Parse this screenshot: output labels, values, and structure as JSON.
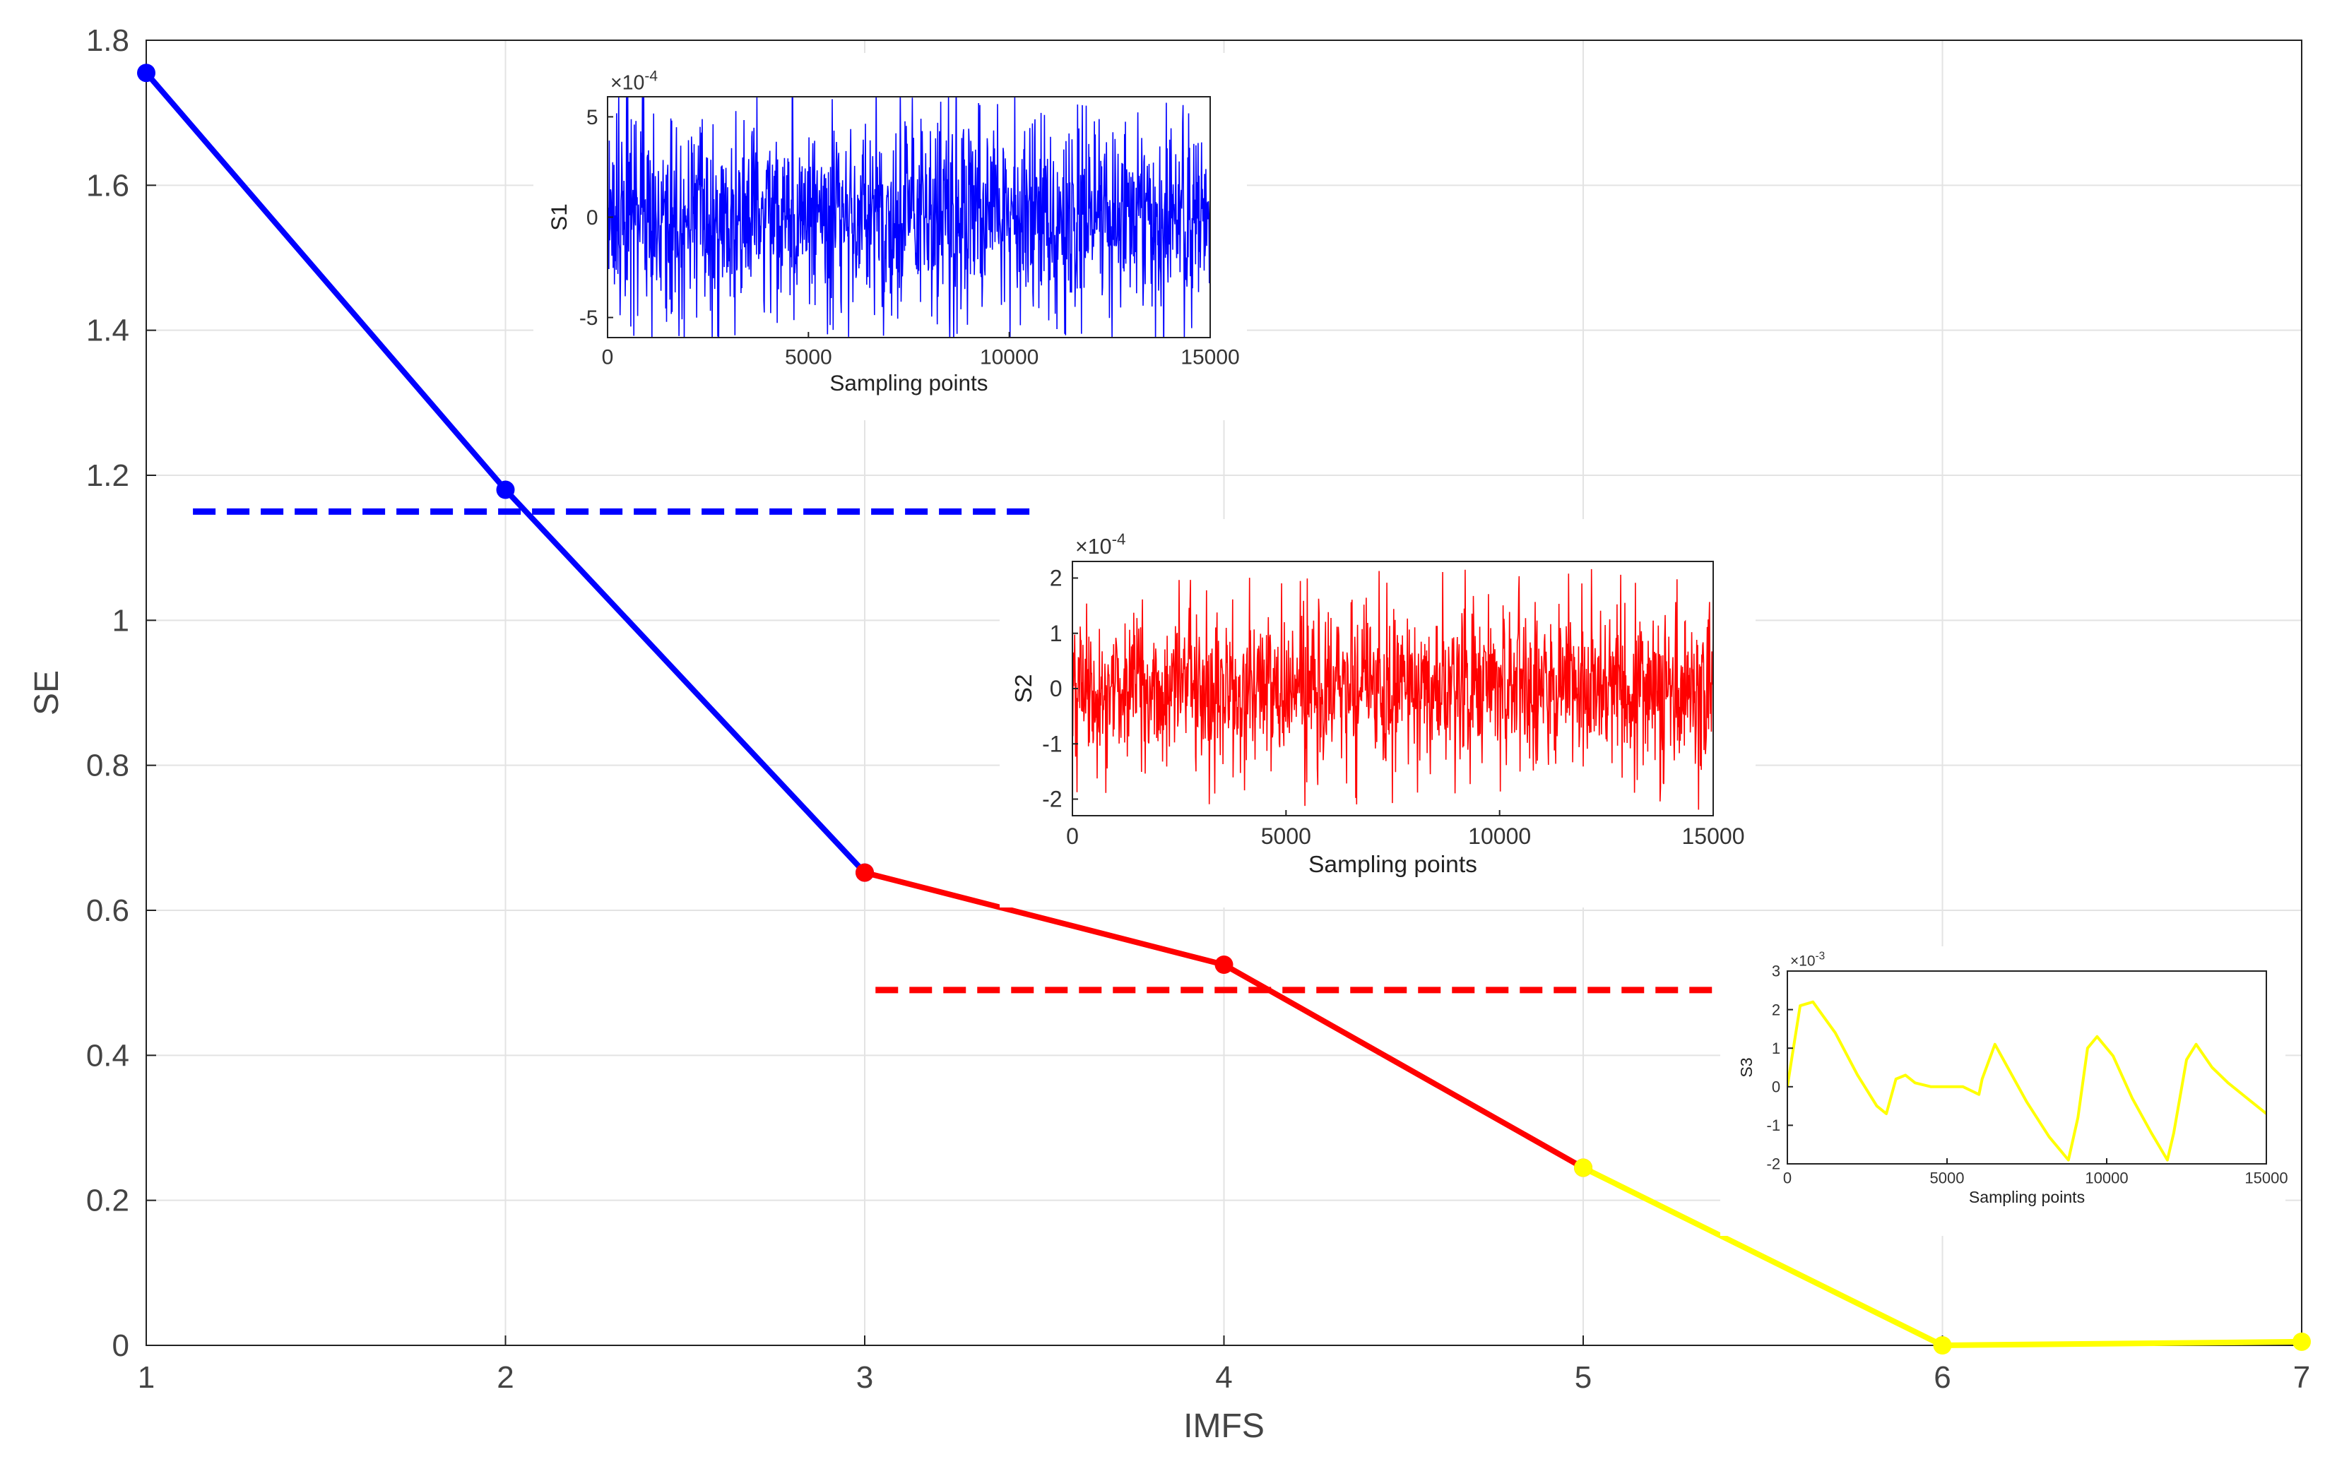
{
  "chart_data": [
    {
      "type": "line",
      "xlabel": "IMFS",
      "ylabel": "SE",
      "xlim": [
        1,
        7
      ],
      "ylim": [
        0,
        1.8
      ],
      "xticks": [
        1,
        2,
        3,
        4,
        5,
        6,
        7
      ],
      "yticks": [
        0,
        0.2,
        0.4,
        0.6,
        0.8,
        1,
        1.2,
        1.4,
        1.6,
        1.8
      ],
      "ytick_labels": [
        "0",
        "0.2",
        "0.4",
        "0.6",
        "0.8",
        "1",
        "1.2",
        "1.4",
        "1.6",
        "1.8"
      ],
      "grid": true,
      "series": [
        {
          "color": "#0000ff",
          "x": [
            1,
            2,
            3
          ],
          "y": [
            1.755,
            1.18,
            0.652
          ]
        },
        {
          "color": "#ff0000",
          "x": [
            3,
            4,
            5
          ],
          "y": [
            0.652,
            0.525,
            0.245
          ]
        },
        {
          "color": "#ffff00",
          "x": [
            5,
            6,
            7
          ],
          "y": [
            0.245,
            0.0,
            0.005
          ]
        }
      ],
      "thresholds": [
        {
          "color": "#0000ff",
          "y": 1.15,
          "x": [
            1.13,
            3.48
          ],
          "style": "dashed"
        },
        {
          "color": "#ff0000",
          "y": 0.49,
          "x": [
            3.03,
            5.38
          ],
          "style": "dashed"
        }
      ]
    },
    {
      "type": "line",
      "ylabel": "S1",
      "xlabel": "Sampling points",
      "xlim": [
        0,
        15000
      ],
      "ylim": [
        -6,
        6
      ],
      "xticks": [
        0,
        5000,
        10000,
        15000
      ],
      "yticks": [
        -5,
        0,
        5
      ],
      "exponent": "×10^-4",
      "color": "#0000ff",
      "signal": "noise",
      "amplitude": 2.4,
      "spike_max": 6.5
    },
    {
      "type": "line",
      "ylabel": "S2",
      "xlabel": "Sampling points",
      "xlim": [
        0,
        15000
      ],
      "ylim": [
        -2.3,
        2.3
      ],
      "xticks": [
        0,
        5000,
        10000,
        15000
      ],
      "yticks": [
        -2,
        -1,
        0,
        1,
        2
      ],
      "exponent": "×10^-4",
      "color": "#ff0000",
      "signal": "noise",
      "amplitude": 0.7,
      "spike_max": 2.2
    },
    {
      "type": "line",
      "ylabel": "S3",
      "xlabel": "Sampling points",
      "xlim": [
        0,
        15000
      ],
      "ylim": [
        -2,
        3
      ],
      "xticks": [
        0,
        5000,
        10000,
        15000
      ],
      "yticks": [
        -2,
        -1,
        0,
        1,
        2,
        3
      ],
      "exponent": "×10^-3",
      "color": "#ffff00",
      "signal": "wave",
      "x": [
        0,
        150,
        400,
        800,
        1500,
        2200,
        2800,
        3100,
        3400,
        3700,
        4000,
        4500,
        5000,
        5500,
        6000,
        6100,
        6500,
        6900,
        7500,
        8200,
        8800,
        9100,
        9400,
        9700,
        10200,
        10800,
        11400,
        11900,
        12100,
        12500,
        12800,
        13300,
        13800,
        14400,
        15000
      ],
      "y": [
        0,
        0.8,
        2.1,
        2.2,
        1.4,
        0.3,
        -0.5,
        -0.7,
        0.2,
        0.3,
        0.1,
        0.0,
        0.0,
        0.0,
        -0.2,
        0.2,
        1.1,
        0.5,
        -0.4,
        -1.3,
        -1.9,
        -0.8,
        1.0,
        1.3,
        0.8,
        -0.3,
        -1.2,
        -1.9,
        -1.2,
        0.7,
        1.1,
        0.5,
        0.1,
        -0.3,
        -0.7
      ]
    }
  ]
}
